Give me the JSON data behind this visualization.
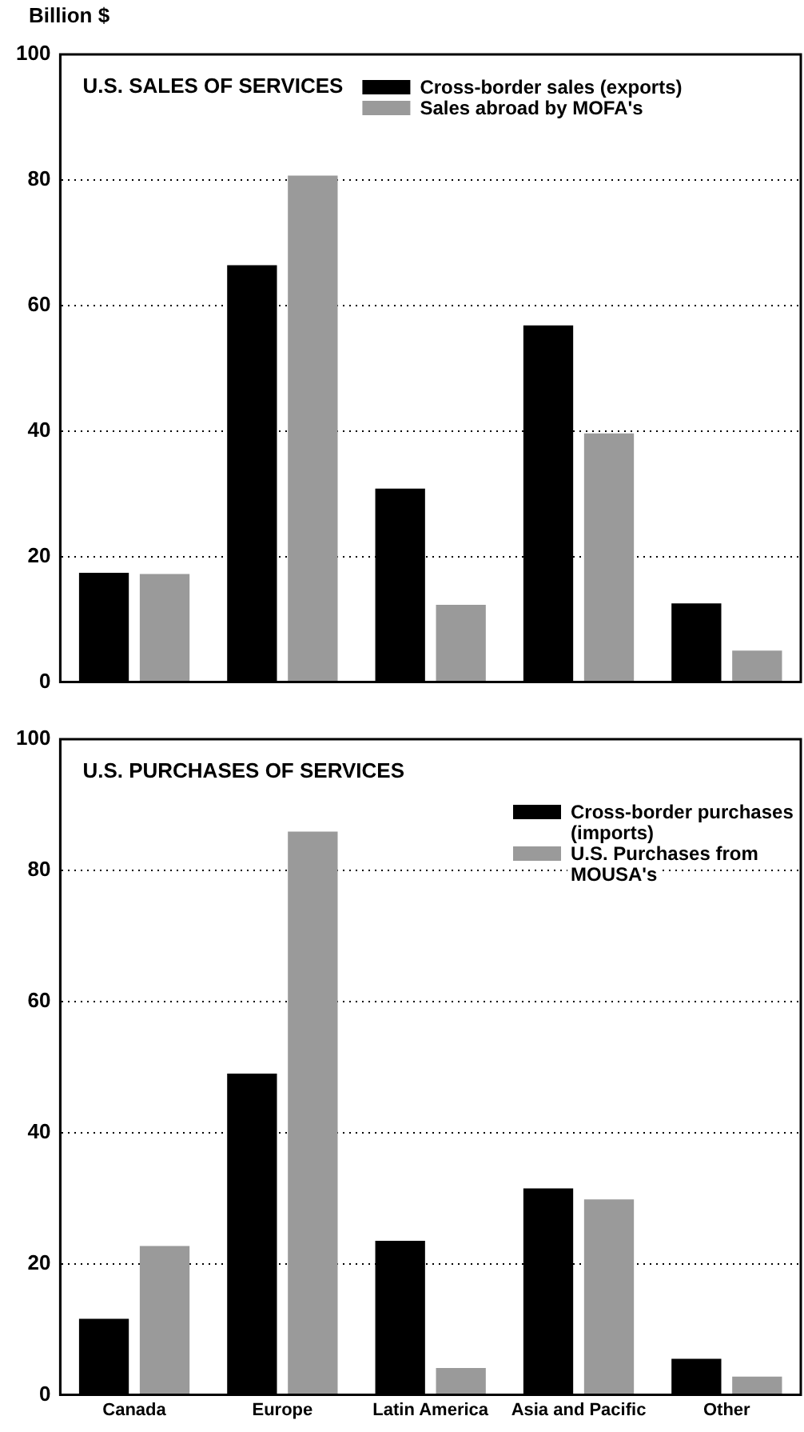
{
  "chart_data": [
    {
      "type": "bar",
      "title": "U.S. SALES OF SERVICES",
      "ylabel": "Billion $",
      "categories": [
        null,
        null,
        null,
        null,
        null
      ],
      "series": [
        {
          "name": "Cross-border sales (exports)",
          "color": "#000000",
          "values": [
            17.4,
            66.4,
            30.8,
            56.8,
            12.5
          ]
        },
        {
          "name": "Sales abroad by MOFA's",
          "color": "#9a9a9a",
          "values": [
            17.2,
            80.7,
            12.3,
            39.6,
            5.0
          ]
        }
      ],
      "ylim": [
        0,
        100
      ],
      "yticks": [
        0,
        20,
        40,
        60,
        80,
        100
      ],
      "grid": "y",
      "legend": "top right",
      "tick_labels": "y"
    },
    {
      "type": "bar",
      "title": "U.S. PURCHASES OF SERVICES",
      "categories": [
        "Canada",
        "Europe",
        "Latin America",
        "Asia and Pacific",
        "Other"
      ],
      "series": [
        {
          "name": "Cross-border purchases (imports)",
          "color": "#000000",
          "values": [
            11.6,
            49.0,
            23.5,
            31.5,
            5.5
          ]
        },
        {
          "name": "U.S. Purchases from MOUSA's",
          "color": "#9a9a9a",
          "values": [
            22.7,
            85.9,
            4.1,
            29.8,
            2.8
          ]
        }
      ],
      "ylim": [
        0,
        100
      ],
      "yticks": [
        0,
        20,
        40,
        60,
        80,
        100
      ],
      "grid": "y",
      "legend": "top right"
    }
  ]
}
